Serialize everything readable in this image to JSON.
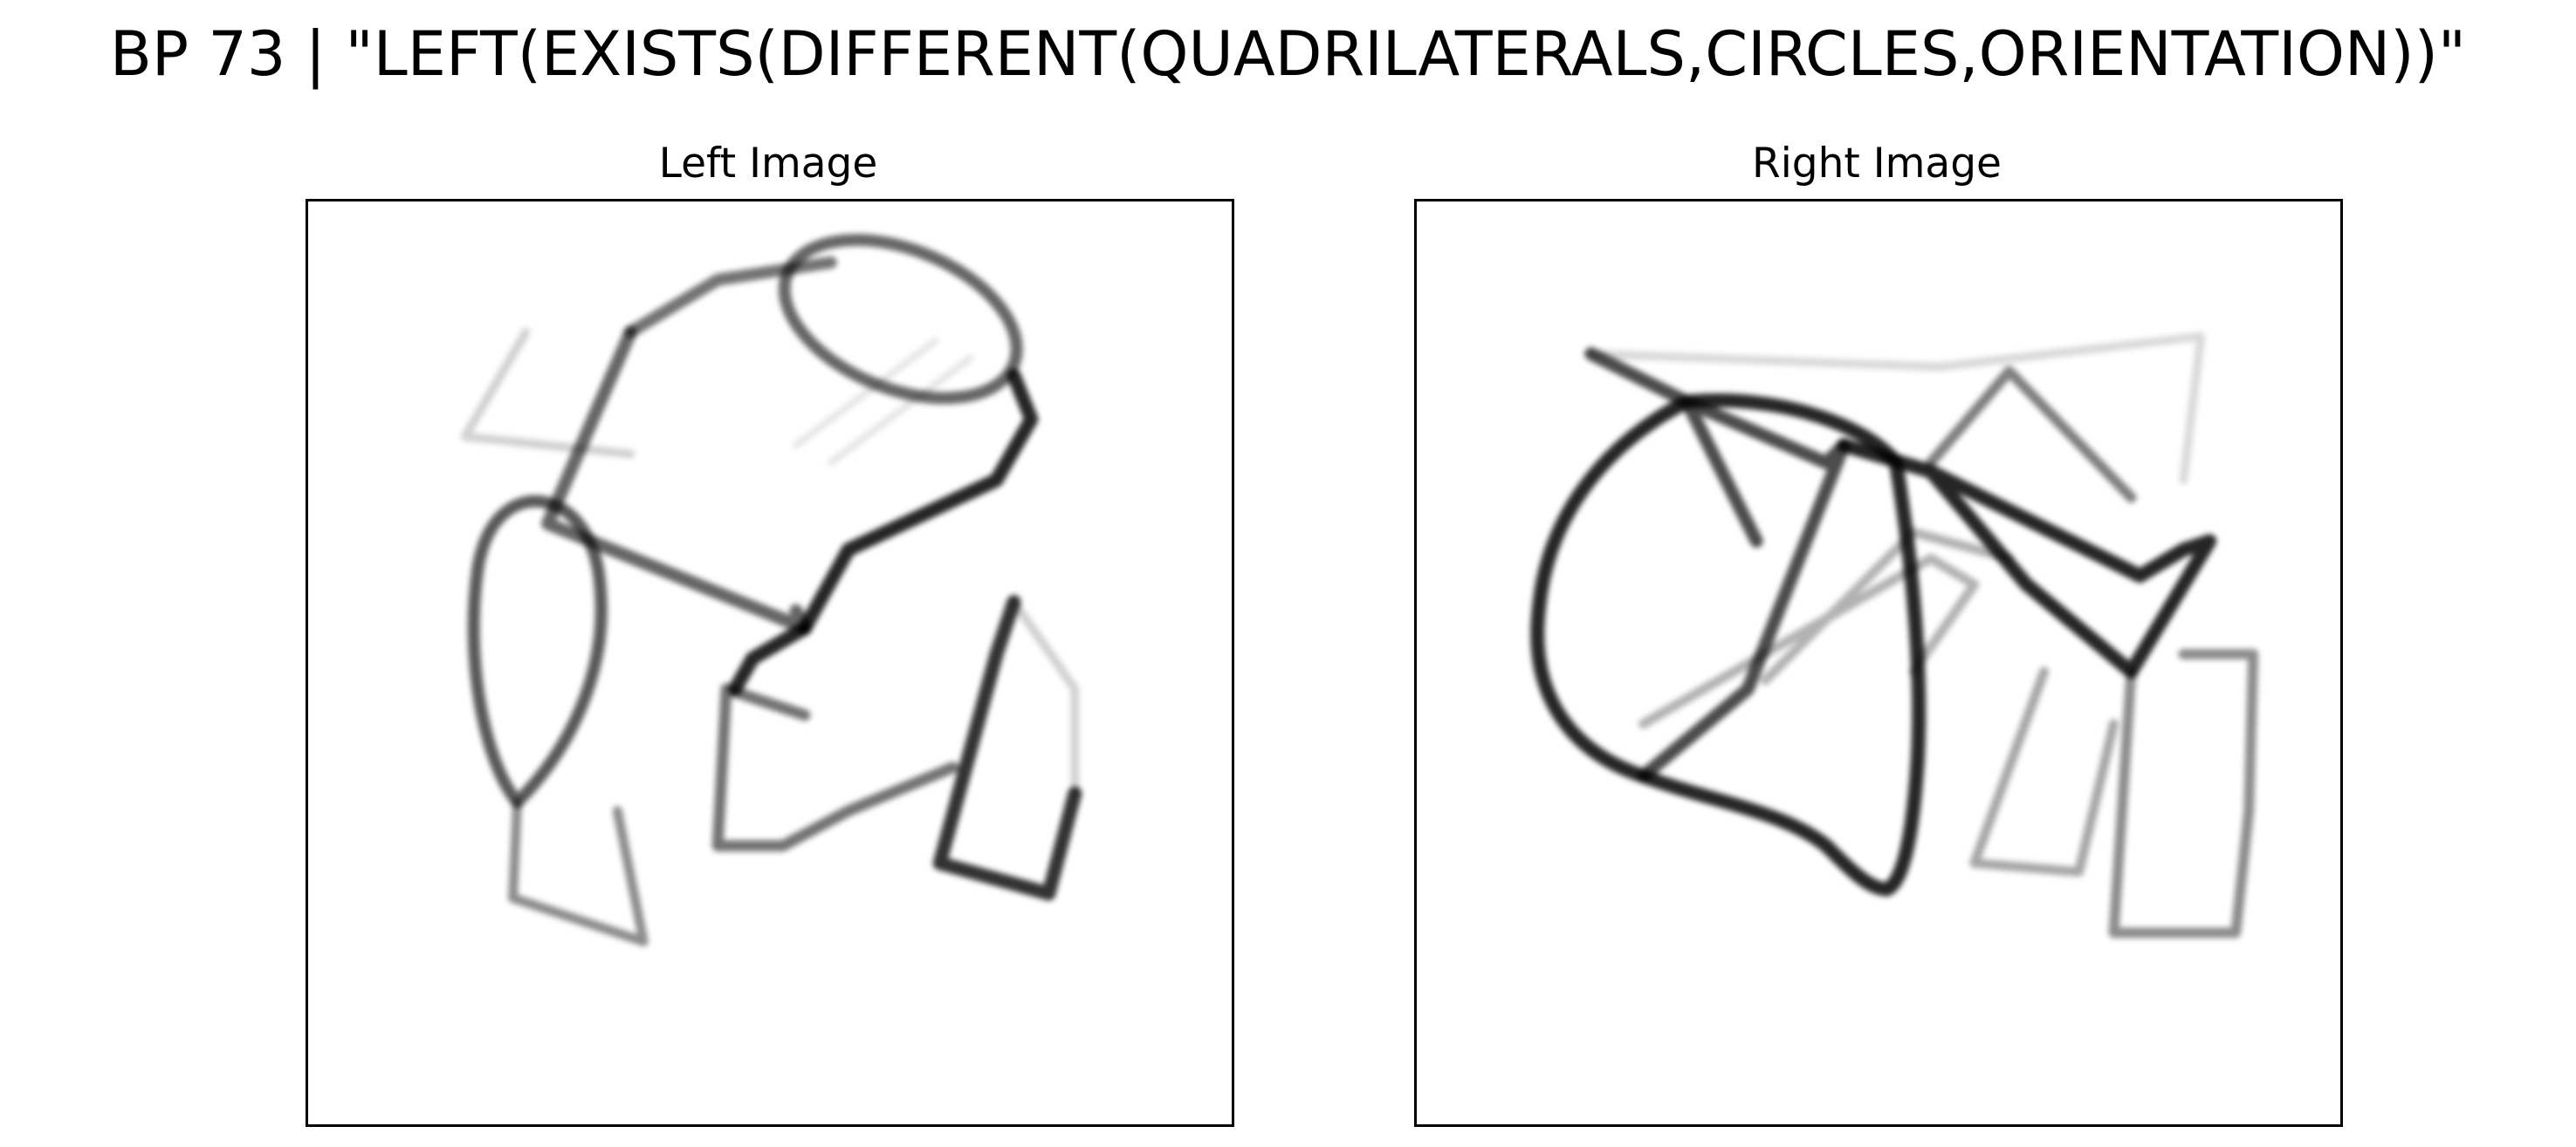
{
  "figure": {
    "title": "BP 73 | \"LEFT(EXISTS(DIFFERENT(QUADRILATERALS,CIRCLES,ORIENTATION))\""
  },
  "panels": {
    "left": {
      "title": "Left Image"
    },
    "right": {
      "title": "Right Image"
    }
  },
  "colors": {
    "background": "#ffffff",
    "frame": "#000000",
    "ink": "#000000"
  }
}
